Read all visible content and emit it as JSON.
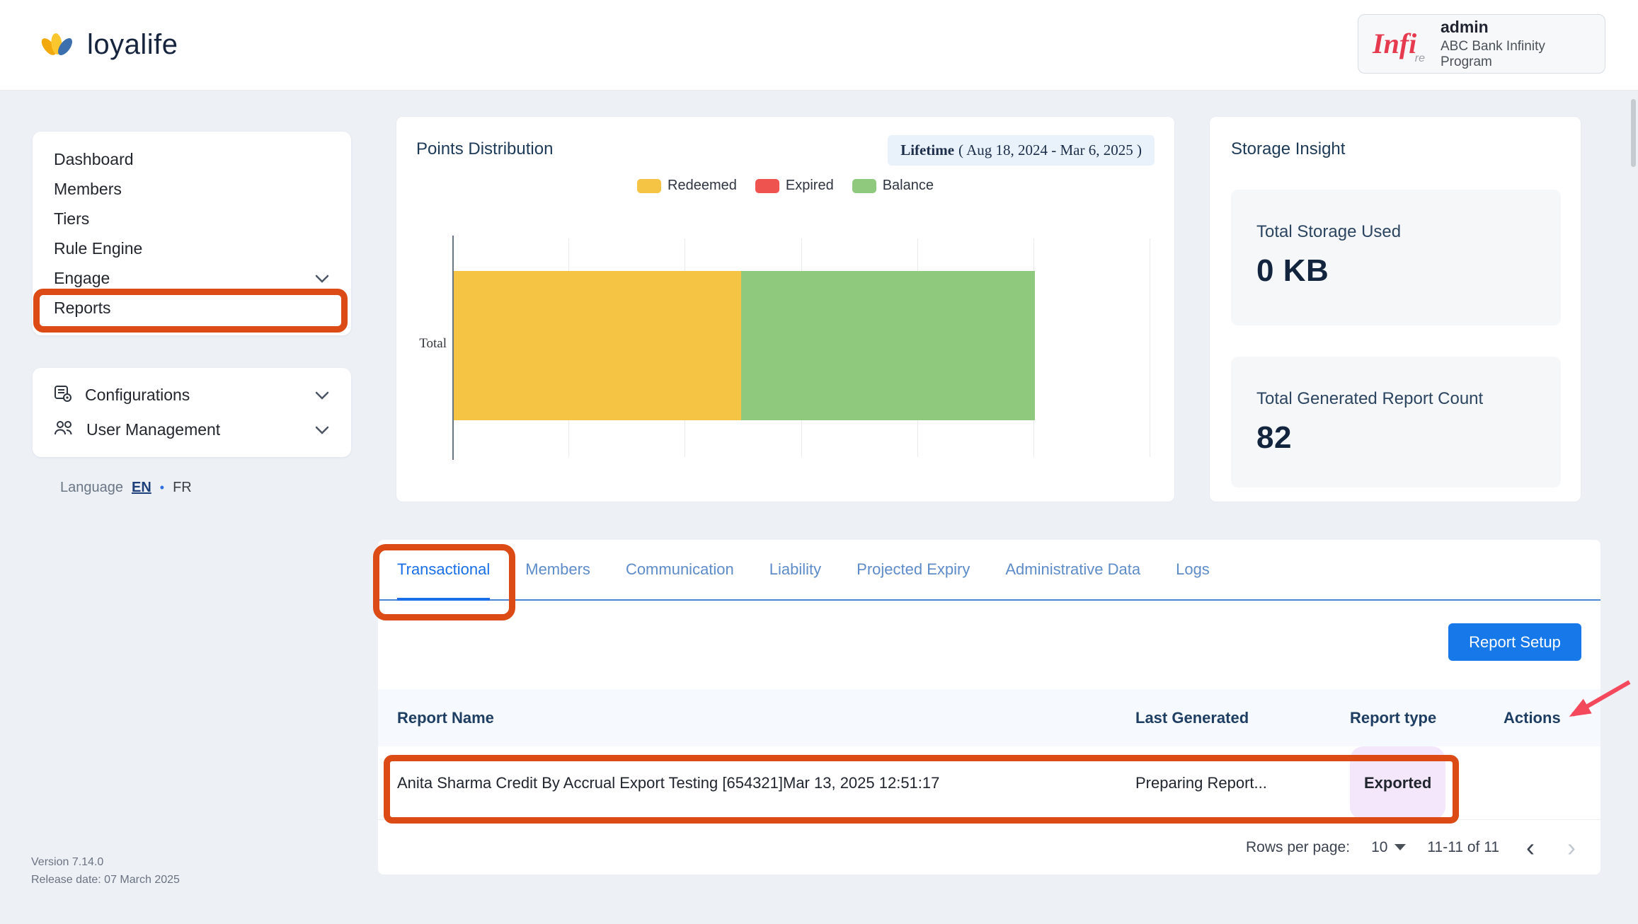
{
  "colors": {
    "accent_blue": "#1778EA",
    "active_tab_blue": "#1A6FE8",
    "annotation_orange": "#DC4B16",
    "arrow_red": "#F4495C",
    "badge_exported_bg": "#F4E7FB",
    "badge_exported_text": "#A32BC4"
  },
  "header": {
    "logo_text": "loyalife",
    "account": {
      "logo_main": "Infi",
      "logo_sub": "re",
      "name": "admin",
      "program": "ABC Bank Infinity Program"
    }
  },
  "sidebar": {
    "nav": [
      {
        "label": "Dashboard"
      },
      {
        "label": "Members"
      },
      {
        "label": "Tiers"
      },
      {
        "label": "Rule Engine"
      },
      {
        "label": "Engage"
      },
      {
        "label": "Reports"
      }
    ],
    "config": [
      {
        "label": "Configurations"
      },
      {
        "label": "User Management"
      }
    ],
    "language": {
      "label": "Language",
      "en": "EN",
      "separator": "•",
      "fr": "FR"
    },
    "version": "Version 7.14.0",
    "release_date": "Release date: 07 March 2025"
  },
  "points_card": {
    "title": "Points Distribution",
    "period_bold": "Lifetime",
    "period_rest": "( Aug 18, 2024 - Mar 6, 2025 )",
    "legend": [
      {
        "label": "Redeemed",
        "color": "#F6C445"
      },
      {
        "label": "Expired",
        "color": "#EF5350"
      },
      {
        "label": "Balance",
        "color": "#8FC97E"
      }
    ]
  },
  "chart_data": {
    "type": "bar",
    "orientation": "horizontal",
    "stacked": true,
    "categories": [
      "Total"
    ],
    "series": [
      {
        "name": "Redeemed",
        "values": [
          49.5
        ],
        "color": "#F6C445"
      },
      {
        "name": "Expired",
        "values": [
          0
        ],
        "color": "#EF5350"
      },
      {
        "name": "Balance",
        "values": [
          50.5
        ],
        "color": "#8FC97E"
      }
    ],
    "title": "Points Distribution",
    "xlabel": "",
    "ylabel": "",
    "xlim": [
      0,
      120
    ],
    "grid": "vertical",
    "legend_position": "top",
    "note": "Segment values are percentages of total points estimated from bar widths; x-axis tick labels are not shown in the screenshot."
  },
  "storage_card": {
    "title": "Storage Insight",
    "metrics": [
      {
        "label": "Total Storage Used",
        "value": "0 KB"
      },
      {
        "label": "Total Generated Report Count",
        "value": "82"
      }
    ]
  },
  "tabs": [
    {
      "label": "Transactional"
    },
    {
      "label": "Members"
    },
    {
      "label": "Communication"
    },
    {
      "label": "Liability"
    },
    {
      "label": "Projected Expiry"
    },
    {
      "label": "Administrative Data"
    },
    {
      "label": "Logs"
    }
  ],
  "active_tab": "Transactional",
  "report_setup_button": "Report Setup",
  "table": {
    "columns": [
      "Report Name",
      "Last Generated",
      "Report type",
      "Actions"
    ],
    "rows": [
      {
        "report_name": "Anita Sharma Credit By Accrual Export Testing [654321]Mar 13, 2025 12:51:17",
        "last_generated": "Preparing Report...",
        "report_type": "Exported"
      }
    ]
  },
  "pagination": {
    "rows_per_page_label": "Rows per page:",
    "rows_per_page_value": "10",
    "range_text": "11-11 of 11",
    "prev_icon": "‹",
    "next_icon": "›"
  }
}
